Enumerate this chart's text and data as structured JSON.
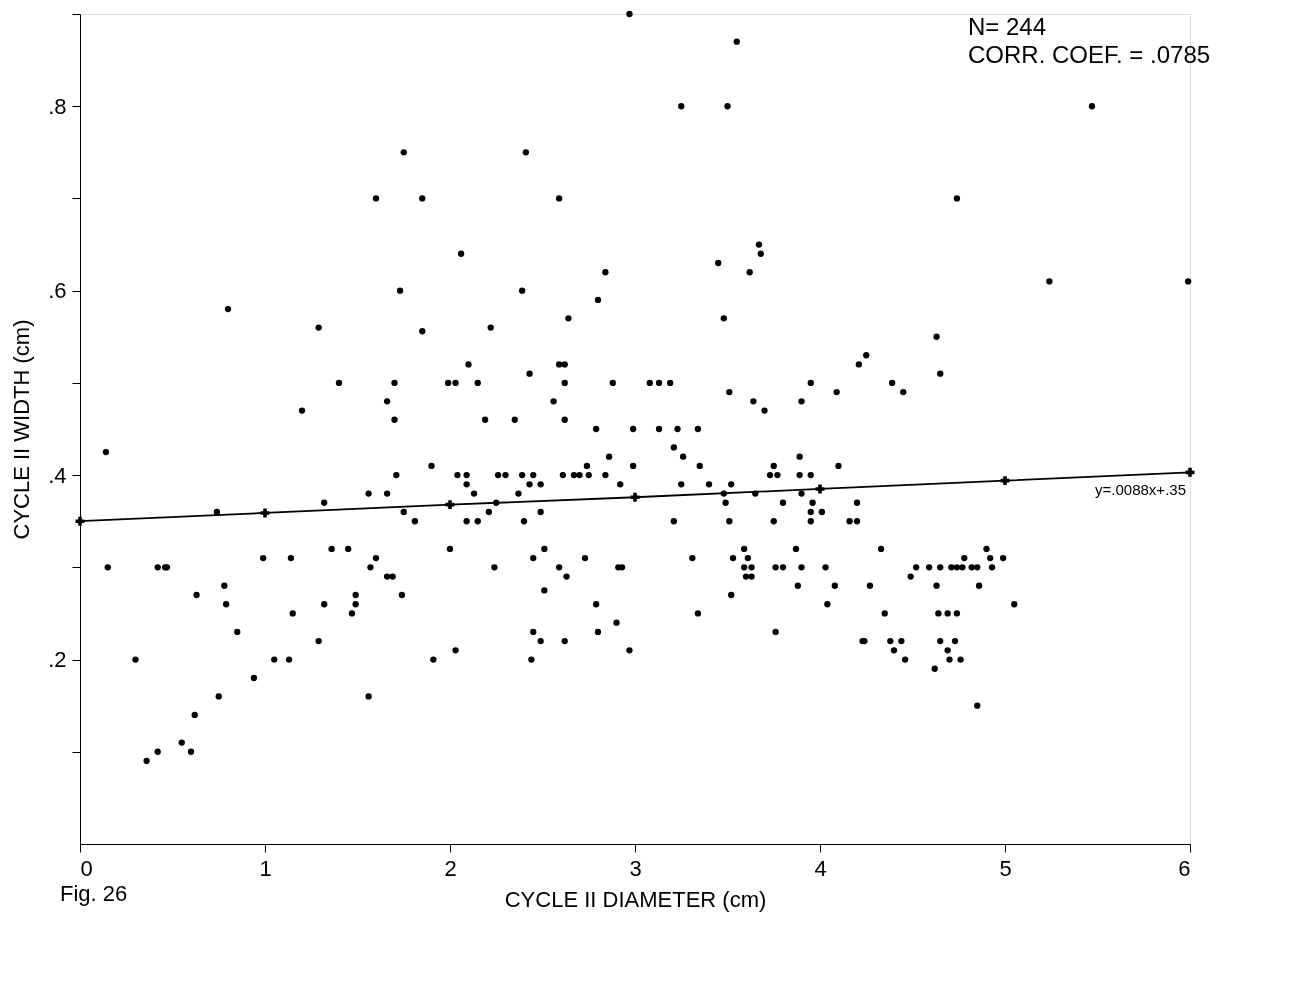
{
  "chart_data": {
    "type": "scatter",
    "xlabel": "CYCLE II DIAMETER (cm)",
    "ylabel": "CYCLE II WIDTH (cm)",
    "annotations": [
      "N= 244",
      "CORR. COEF. = .0785",
      "y=.0088x+.35",
      "Fig. 26"
    ],
    "xlim": [
      0,
      6
    ],
    "ylim": [
      0,
      0.9
    ],
    "xticks": [
      0,
      1,
      2,
      3,
      4,
      5,
      6
    ],
    "yticks": [
      {
        "value": 0.1,
        "label": null
      },
      {
        "value": 0.2,
        "label": ".2"
      },
      {
        "value": 0.3,
        "label": null
      },
      {
        "value": 0.4,
        "label": ".4"
      },
      {
        "value": 0.5,
        "label": null
      },
      {
        "value": 0.6,
        "label": ".6"
      },
      {
        "value": 0.7,
        "label": null
      },
      {
        "value": 0.8,
        "label": ".8"
      },
      {
        "value": 0.9,
        "label": null
      }
    ],
    "grid": false,
    "series": [
      {
        "type": "scatter",
        "color": "#000000",
        "marker": "circle",
        "x": [
          2.97,
          3.55,
          3.25,
          3.5,
          5.47,
          1.75,
          2.41,
          1.6,
          1.85,
          2.59,
          4.74,
          2.06,
          3.67,
          3.68,
          3.45,
          2.84,
          3.62,
          5.24,
          5.99,
          1.73,
          2.39,
          2.8,
          0.8,
          2.64,
          3.48,
          1.29,
          1.85,
          2.22,
          4.63,
          4.25,
          2.1,
          2.59,
          2.62,
          4.21,
          2.43,
          4.65,
          1.4,
          1.7,
          1.99,
          2.03,
          2.15,
          2.62,
          2.88,
          3.08,
          3.13,
          3.19,
          3.95,
          4.39,
          3.51,
          4.09,
          4.45,
          1.66,
          2.56,
          3.64,
          3.9,
          1.2,
          3.7,
          1.7,
          2.19,
          2.35,
          2.62,
          2.79,
          2.99,
          3.13,
          3.23,
          3.34,
          0.14,
          3.21,
          3.26,
          2.86,
          3.89,
          1.9,
          2.74,
          2.99,
          3.35,
          3.75,
          4.1,
          1.71,
          2.04,
          2.09,
          2.26,
          2.3,
          2.39,
          2.45,
          2.61,
          2.67,
          2.7,
          2.75,
          2.84,
          3.73,
          3.77,
          3.89,
          3.95,
          2.09,
          2.43,
          2.49,
          2.92,
          3.25,
          3.4,
          3.52,
          1.56,
          1.66,
          2.13,
          2.37,
          3.48,
          3.65,
          3.9,
          1.32,
          2.25,
          3.49,
          3.8,
          3.96,
          4.2,
          0.74,
          1.75,
          2.21,
          2.49,
          3.95,
          4.01,
          1.81,
          2.09,
          2.15,
          2.4,
          3.21,
          3.51,
          3.75,
          3.95,
          4.16,
          4.2,
          1.36,
          1.45,
          2.0,
          2.51,
          3.59,
          3.87,
          4.33,
          4.9,
          0.99,
          1.14,
          1.6,
          2.45,
          2.73,
          3.31,
          3.53,
          3.61,
          4.78,
          4.92,
          4.99,
          0.15,
          0.42,
          0.46,
          0.47,
          1.57,
          2.24,
          2.59,
          2.91,
          2.93,
          3.59,
          3.63,
          3.76,
          3.8,
          3.9,
          4.03,
          4.52,
          4.59,
          4.65,
          4.71,
          4.74,
          4.77,
          4.82,
          4.85,
          4.93,
          1.66,
          1.69,
          2.63,
          3.6,
          3.63,
          4.49,
          0.78,
          3.88,
          4.08,
          4.27,
          4.63,
          4.86,
          2.51,
          0.63,
          1.49,
          1.74,
          3.52,
          0.79,
          1.32,
          1.49,
          2.79,
          4.04,
          5.05,
          1.15,
          1.47,
          3.34,
          4.35,
          4.64,
          4.69,
          4.74,
          2.9,
          0.85,
          2.45,
          2.8,
          3.76,
          1.29,
          2.49,
          2.62,
          4.23,
          4.24,
          4.38,
          4.44,
          4.65,
          4.73,
          2.03,
          2.97,
          4.4,
          4.69,
          0.3,
          1.05,
          1.13,
          1.91,
          2.44,
          4.46,
          4.7,
          4.76,
          4.62,
          0.94,
          1.56,
          0.75,
          4.85,
          0.62,
          0.55,
          0.6,
          0.42,
          0.36
        ],
        "values": [
          0.9,
          0.87,
          0.8,
          0.8,
          0.8,
          0.75,
          0.75,
          0.7,
          0.7,
          0.7,
          0.7,
          0.64,
          0.65,
          0.64,
          0.63,
          0.62,
          0.62,
          0.61,
          0.61,
          0.6,
          0.6,
          0.59,
          0.58,
          0.57,
          0.57,
          0.56,
          0.556,
          0.56,
          0.55,
          0.53,
          0.52,
          0.52,
          0.52,
          0.52,
          0.51,
          0.51,
          0.5,
          0.5,
          0.5,
          0.5,
          0.5,
          0.5,
          0.5,
          0.5,
          0.5,
          0.5,
          0.5,
          0.5,
          0.49,
          0.49,
          0.49,
          0.48,
          0.48,
          0.48,
          0.48,
          0.47,
          0.47,
          0.46,
          0.46,
          0.46,
          0.46,
          0.45,
          0.45,
          0.45,
          0.45,
          0.45,
          0.425,
          0.43,
          0.42,
          0.42,
          0.42,
          0.41,
          0.41,
          0.41,
          0.41,
          0.41,
          0.41,
          0.4,
          0.4,
          0.4,
          0.4,
          0.4,
          0.4,
          0.4,
          0.4,
          0.4,
          0.4,
          0.4,
          0.4,
          0.4,
          0.4,
          0.4,
          0.4,
          0.39,
          0.39,
          0.39,
          0.39,
          0.39,
          0.39,
          0.39,
          0.38,
          0.38,
          0.38,
          0.38,
          0.38,
          0.38,
          0.38,
          0.37,
          0.37,
          0.37,
          0.37,
          0.37,
          0.37,
          0.36,
          0.36,
          0.36,
          0.36,
          0.36,
          0.36,
          0.35,
          0.35,
          0.35,
          0.35,
          0.35,
          0.35,
          0.35,
          0.35,
          0.35,
          0.35,
          0.32,
          0.32,
          0.32,
          0.32,
          0.32,
          0.32,
          0.32,
          0.32,
          0.31,
          0.31,
          0.31,
          0.31,
          0.31,
          0.31,
          0.31,
          0.31,
          0.31,
          0.31,
          0.31,
          0.3,
          0.3,
          0.3,
          0.3,
          0.3,
          0.3,
          0.3,
          0.3,
          0.3,
          0.3,
          0.3,
          0.3,
          0.3,
          0.3,
          0.3,
          0.3,
          0.3,
          0.3,
          0.3,
          0.3,
          0.3,
          0.3,
          0.3,
          0.3,
          0.29,
          0.29,
          0.29,
          0.29,
          0.29,
          0.29,
          0.28,
          0.28,
          0.28,
          0.28,
          0.28,
          0.28,
          0.275,
          0.27,
          0.27,
          0.27,
          0.27,
          0.26,
          0.26,
          0.26,
          0.26,
          0.26,
          0.26,
          0.25,
          0.25,
          0.25,
          0.25,
          0.25,
          0.25,
          0.25,
          0.24,
          0.23,
          0.23,
          0.23,
          0.23,
          0.22,
          0.22,
          0.22,
          0.22,
          0.22,
          0.22,
          0.22,
          0.22,
          0.22,
          0.21,
          0.21,
          0.21,
          0.21,
          0.2,
          0.2,
          0.2,
          0.2,
          0.2,
          0.2,
          0.2,
          0.2,
          0.19,
          0.18,
          0.16,
          0.16,
          0.15,
          0.14,
          0.11,
          0.1,
          0.1,
          0.09
        ]
      },
      {
        "type": "line",
        "color": "#000000",
        "marker": "cross",
        "line_style": "solid",
        "x": [
          0,
          1,
          2,
          3,
          4,
          5,
          6
        ],
        "values": [
          0.35,
          0.359,
          0.368,
          0.376,
          0.385,
          0.394,
          0.403
        ]
      }
    ]
  }
}
